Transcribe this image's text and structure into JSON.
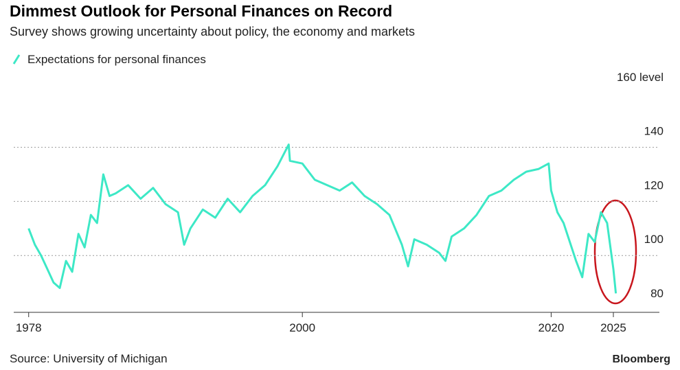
{
  "chart_data": {
    "type": "line",
    "title": "Dimmest Outlook for Personal Finances on Record",
    "subtitle": "Survey shows growing uncertainty about policy, the economy and markets",
    "source": "Source: University of Michigan",
    "brand": "Bloomberg",
    "x": [
      1978,
      1978.5,
      1979,
      1979.5,
      1980,
      1980.5,
      1981,
      1981.5,
      1982,
      1982.5,
      1983,
      1983.5,
      1984,
      1984.5,
      1985,
      1986,
      1987,
      1988,
      1989,
      1990,
      1990.5,
      1991,
      1992,
      1993,
      1994,
      1995,
      1996,
      1997,
      1998,
      1998.9,
      1999,
      2000,
      2001,
      2002,
      2003,
      2004,
      2005,
      2006,
      2007,
      2008,
      2008.5,
      2009,
      2010,
      2011,
      2011.5,
      2012,
      2013,
      2014,
      2015,
      2016,
      2017,
      2018,
      2019,
      2019.8,
      2020,
      2020.5,
      2021,
      2022,
      2022.5,
      2023,
      2023.5,
      2024,
      2024.5,
      2025,
      2025.2
    ],
    "series": [
      {
        "name": "Expectations for personal finances",
        "color": "#3de8c6",
        "values": [
          110,
          104,
          100,
          95,
          90,
          88,
          98,
          94,
          108,
          103,
          115,
          112,
          130,
          122,
          123,
          126,
          121,
          125,
          119,
          116,
          104,
          110,
          117,
          114,
          121,
          116,
          122,
          126,
          133,
          141,
          135,
          134,
          128,
          126,
          124,
          127,
          122,
          119,
          115,
          104,
          96,
          106,
          104,
          101,
          98,
          107,
          110,
          115,
          122,
          124,
          128,
          131,
          132,
          134,
          124,
          116,
          112,
          98,
          92,
          108,
          105,
          116,
          112,
          95,
          86
        ]
      }
    ],
    "xlim": [
      1976.8,
      2028.7
    ],
    "ylim": [
      79,
      164
    ],
    "xticks": [
      1978,
      2000,
      2020,
      2025
    ],
    "yticks": [
      80,
      100,
      120,
      140,
      {
        "value": 160,
        "label": "160 level"
      }
    ],
    "grid": true
  }
}
